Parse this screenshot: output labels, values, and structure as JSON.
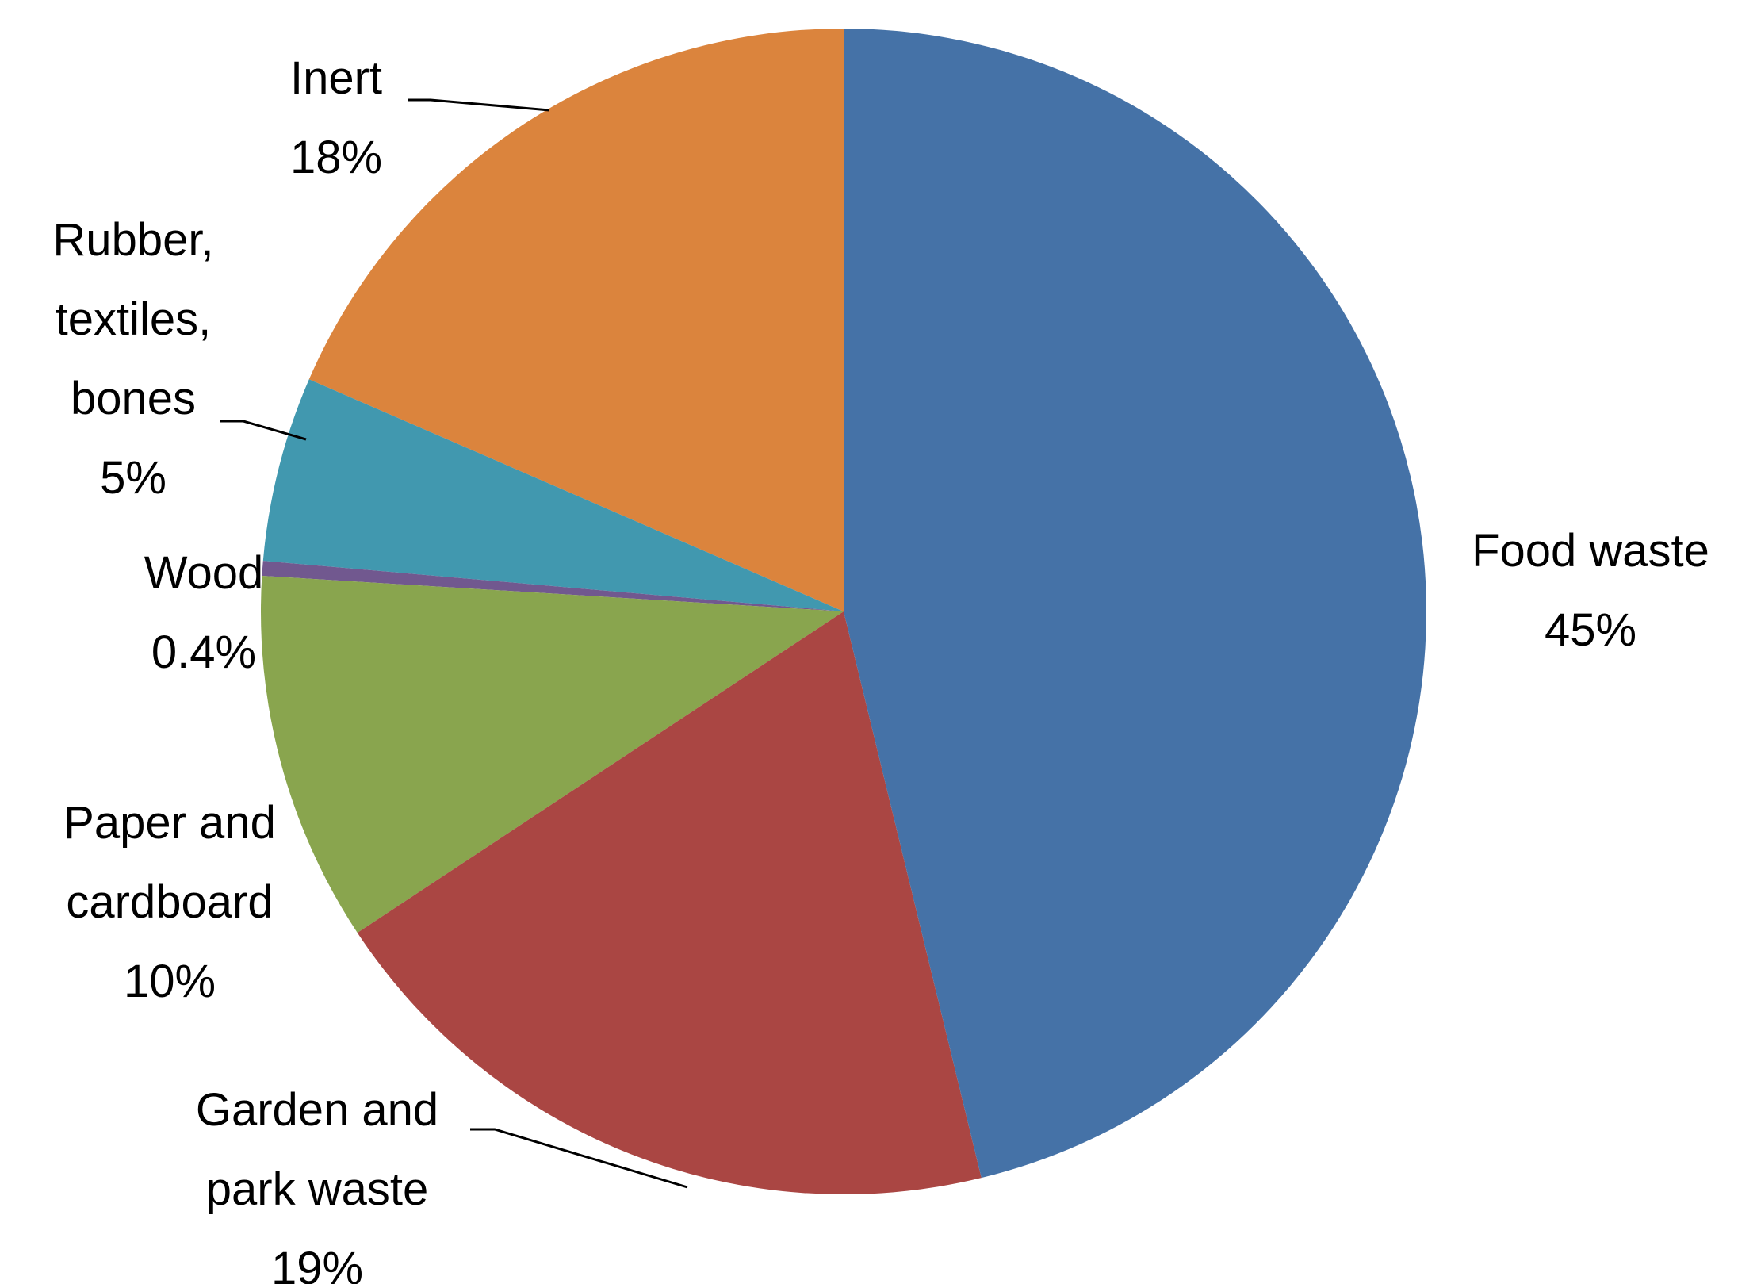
{
  "chart_data": {
    "type": "pie",
    "categories": [
      "Food waste",
      "Garden and park waste",
      "Paper and cardboard",
      "Wood",
      "Rubber, textiles, bones",
      "Inert"
    ],
    "values": [
      45,
      19,
      10,
      0.4,
      5,
      18
    ],
    "value_labels": [
      "45%",
      "19%",
      "10%",
      "0.4%",
      "5%",
      "18%"
    ],
    "colors": [
      "#4572a7",
      "#aa4643",
      "#89a54e",
      "#71588f",
      "#4198af",
      "#db843d"
    ]
  }
}
